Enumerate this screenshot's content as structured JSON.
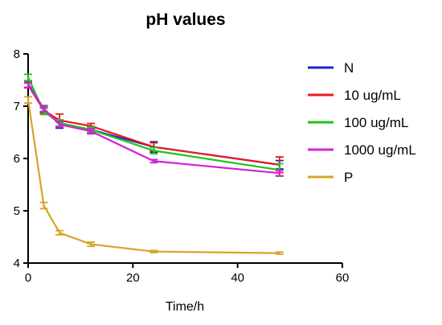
{
  "chart_data": {
    "type": "line",
    "title": "pH values",
    "xlabel": "Time/h",
    "ylabel": "",
    "xlim": [
      0,
      60
    ],
    "ylim": [
      4,
      8
    ],
    "xticks": [
      0,
      20,
      40,
      60
    ],
    "yticks": [
      4,
      5,
      6,
      7,
      8
    ],
    "grid": false,
    "legend_position": "right",
    "x": [
      0,
      3,
      6,
      12,
      24,
      48
    ],
    "series": [
      {
        "name": "N",
        "color": "#1f1fd6",
        "values": [
          7.42,
          6.95,
          6.65,
          6.55,
          6.22,
          5.88
        ],
        "errors": [
          0.06,
          0.06,
          0.07,
          0.06,
          0.1,
          0.08
        ]
      },
      {
        "name": "10 ug/mL",
        "color": "#e8191d",
        "values": [
          7.4,
          6.92,
          6.73,
          6.62,
          6.22,
          5.88
        ],
        "errors": [
          0.05,
          0.05,
          0.12,
          0.05,
          0.08,
          0.15
        ]
      },
      {
        "name": "100 ug/mL",
        "color": "#1dc41d",
        "values": [
          7.55,
          6.9,
          6.68,
          6.55,
          6.15,
          5.78
        ],
        "errors": [
          0.06,
          0.06,
          0.06,
          0.05,
          0.06,
          0.12
        ]
      },
      {
        "name": "1000 ug/mL",
        "color": "#d321d8",
        "values": [
          7.4,
          6.95,
          6.65,
          6.52,
          5.95,
          5.72
        ],
        "errors": [
          0.04,
          0.05,
          0.05,
          0.05,
          0.03,
          0.05
        ]
      },
      {
        "name": "P",
        "color": "#d7a526",
        "values": [
          7.12,
          5.1,
          4.58,
          4.36,
          4.22,
          4.19
        ],
        "errors": [
          0.06,
          0.06,
          0.04,
          0.04,
          0.02,
          0.02
        ]
      }
    ]
  }
}
